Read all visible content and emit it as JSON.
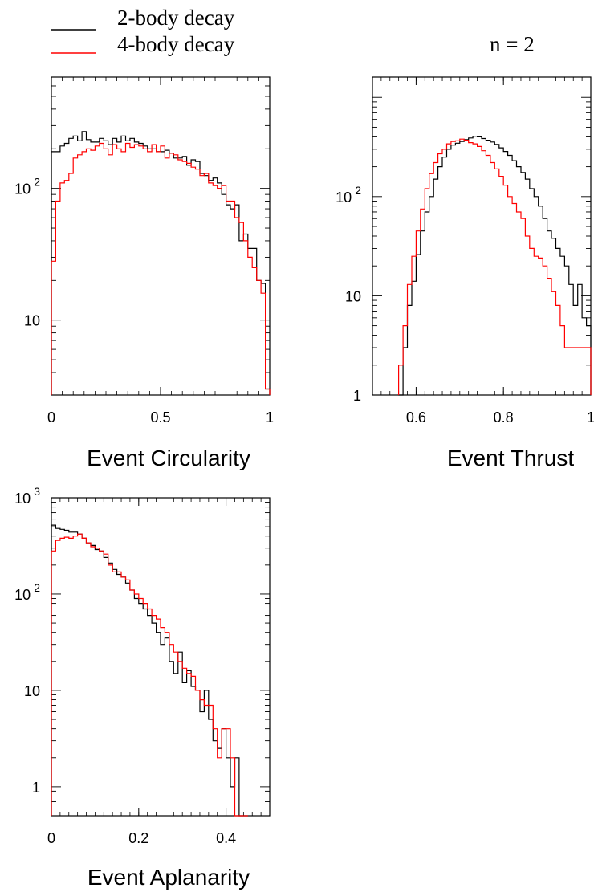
{
  "legend": {
    "series_names": [
      "2-body decay",
      "4-body decay"
    ],
    "series_colors": [
      "#000000",
      "#ff0000"
    ],
    "placement": "top-left"
  },
  "annotation": "n = 2",
  "chart_data": [
    {
      "type": "histogram",
      "xlabel": "Event Circularity",
      "ylabel": "",
      "xlim": [
        0,
        1
      ],
      "ylim": [
        2.7,
        700
      ],
      "yscale": "log",
      "x_ticks": [
        0,
        0.5,
        1
      ],
      "x_tick_labels": [
        "0",
        "0.5",
        "1"
      ],
      "y_ticks": [
        10,
        100
      ],
      "y_tick_labels": [
        {
          "base": "10",
          "exp": ""
        },
        {
          "base": "10",
          "exp": "2"
        }
      ],
      "bin_edges": [
        0,
        0.02,
        0.04,
        0.06,
        0.08,
        0.1,
        0.12,
        0.14,
        0.16,
        0.18,
        0.2,
        0.22,
        0.24,
        0.26,
        0.28,
        0.3,
        0.32,
        0.34,
        0.36,
        0.38,
        0.4,
        0.42,
        0.44,
        0.46,
        0.48,
        0.5,
        0.52,
        0.54,
        0.56,
        0.58,
        0.6,
        0.62,
        0.64,
        0.66,
        0.68,
        0.7,
        0.72,
        0.74,
        0.76,
        0.78,
        0.8,
        0.82,
        0.84,
        0.86,
        0.88,
        0.9,
        0.92,
        0.94,
        0.96,
        0.98,
        1.0
      ],
      "series": [
        {
          "name": "2-body decay",
          "values": [
            190,
            190,
            210,
            220,
            240,
            250,
            230,
            270,
            235,
            225,
            225,
            240,
            230,
            215,
            240,
            225,
            250,
            230,
            240,
            225,
            220,
            210,
            200,
            200,
            190,
            190,
            195,
            185,
            170,
            170,
            175,
            150,
            165,
            160,
            130,
            125,
            115,
            120,
            110,
            90,
            75,
            70,
            75,
            40,
            45,
            35,
            35,
            20,
            19,
            3
          ]
        },
        {
          "name": "4-body decay",
          "values": [
            28,
            80,
            110,
            115,
            130,
            170,
            180,
            190,
            200,
            195,
            210,
            220,
            200,
            180,
            215,
            200,
            190,
            220,
            205,
            215,
            210,
            200,
            190,
            215,
            190,
            210,
            170,
            185,
            180,
            165,
            160,
            155,
            145,
            140,
            125,
            130,
            110,
            105,
            100,
            105,
            80,
            80,
            60,
            55,
            40,
            30,
            25,
            20,
            16,
            3
          ]
        }
      ]
    },
    {
      "type": "histogram",
      "xlabel": "Event Thrust",
      "ylabel": "",
      "xlim": [
        0.5,
        1.0
      ],
      "ylim": [
        1,
        1600
      ],
      "yscale": "log",
      "x_ticks": [
        0.6,
        0.8,
        1.0
      ],
      "x_tick_labels": [
        "0.6",
        "0.8",
        "1"
      ],
      "y_ticks": [
        1,
        10,
        100
      ],
      "y_tick_labels": [
        {
          "base": "1",
          "exp": ""
        },
        {
          "base": "10",
          "exp": ""
        },
        {
          "base": "10",
          "exp": "2"
        }
      ],
      "bin_edges": [
        0.56,
        0.57,
        0.58,
        0.59,
        0.6,
        0.61,
        0.62,
        0.63,
        0.64,
        0.65,
        0.66,
        0.67,
        0.68,
        0.69,
        0.7,
        0.71,
        0.72,
        0.73,
        0.74,
        0.75,
        0.76,
        0.77,
        0.78,
        0.79,
        0.8,
        0.81,
        0.82,
        0.83,
        0.84,
        0.85,
        0.86,
        0.87,
        0.88,
        0.89,
        0.9,
        0.91,
        0.92,
        0.93,
        0.94,
        0.95,
        0.96,
        0.97,
        0.98,
        0.99,
        1.0
      ],
      "series": [
        {
          "name": "2-body decay",
          "values": [
            1,
            3,
            8,
            14,
            26,
            45,
            70,
            100,
            150,
            200,
            250,
            300,
            330,
            345,
            360,
            375,
            390,
            405,
            400,
            385,
            370,
            355,
            335,
            310,
            285,
            260,
            230,
            200,
            175,
            150,
            120,
            100,
            80,
            60,
            45,
            38,
            30,
            25,
            20,
            13,
            8,
            13,
            6,
            5
          ]
        },
        {
          "name": "4-body decay",
          "values": [
            2,
            5,
            13,
            25,
            45,
            75,
            120,
            170,
            220,
            270,
            300,
            340,
            360,
            365,
            380,
            370,
            350,
            340,
            320,
            290,
            260,
            220,
            190,
            160,
            130,
            100,
            85,
            70,
            60,
            40,
            30,
            25,
            24,
            20,
            15,
            11,
            8,
            5,
            3,
            3,
            3,
            3,
            3,
            3
          ]
        }
      ]
    },
    {
      "type": "histogram",
      "xlabel": "Event Aplanarity",
      "ylabel": "",
      "xlim": [
        0,
        0.5
      ],
      "ylim": [
        0.5,
        1000
      ],
      "yscale": "log",
      "x_ticks": [
        0,
        0.2,
        0.4
      ],
      "x_tick_labels": [
        "0",
        "0.2",
        "0.4"
      ],
      "y_ticks": [
        1,
        10,
        100,
        1000
      ],
      "y_tick_labels": [
        {
          "base": "1",
          "exp": ""
        },
        {
          "base": "10",
          "exp": ""
        },
        {
          "base": "10",
          "exp": "2"
        },
        {
          "base": "10",
          "exp": "3"
        }
      ],
      "bin_edges": [
        0,
        0.01,
        0.02,
        0.03,
        0.04,
        0.05,
        0.06,
        0.07,
        0.08,
        0.09,
        0.1,
        0.11,
        0.12,
        0.13,
        0.14,
        0.15,
        0.16,
        0.17,
        0.18,
        0.19,
        0.2,
        0.21,
        0.22,
        0.23,
        0.24,
        0.25,
        0.26,
        0.27,
        0.28,
        0.29,
        0.3,
        0.31,
        0.32,
        0.33,
        0.34,
        0.35,
        0.36,
        0.37,
        0.38,
        0.39,
        0.4,
        0.41,
        0.42,
        0.43,
        0.44,
        0.45
      ],
      "series": [
        {
          "name": "2-body decay",
          "values": [
            520,
            480,
            470,
            460,
            440,
            440,
            420,
            380,
            340,
            320,
            290,
            280,
            240,
            210,
            180,
            160,
            150,
            130,
            110,
            90,
            80,
            70,
            60,
            50,
            40,
            30,
            35,
            20,
            15,
            25,
            12,
            16,
            11,
            10,
            6,
            10,
            5,
            3,
            2.5,
            4,
            2,
            1,
            2,
            0.5,
            0.5
          ]
        },
        {
          "name": "4-body decay",
          "values": [
            280,
            360,
            380,
            390,
            380,
            400,
            420,
            380,
            340,
            310,
            300,
            280,
            260,
            200,
            170,
            170,
            150,
            140,
            110,
            100,
            90,
            80,
            70,
            60,
            55,
            45,
            40,
            30,
            25,
            20,
            17,
            15,
            14,
            10,
            8,
            7,
            7,
            4,
            2,
            4,
            4,
            2,
            0.5,
            0.5,
            0.5
          ]
        }
      ]
    }
  ]
}
